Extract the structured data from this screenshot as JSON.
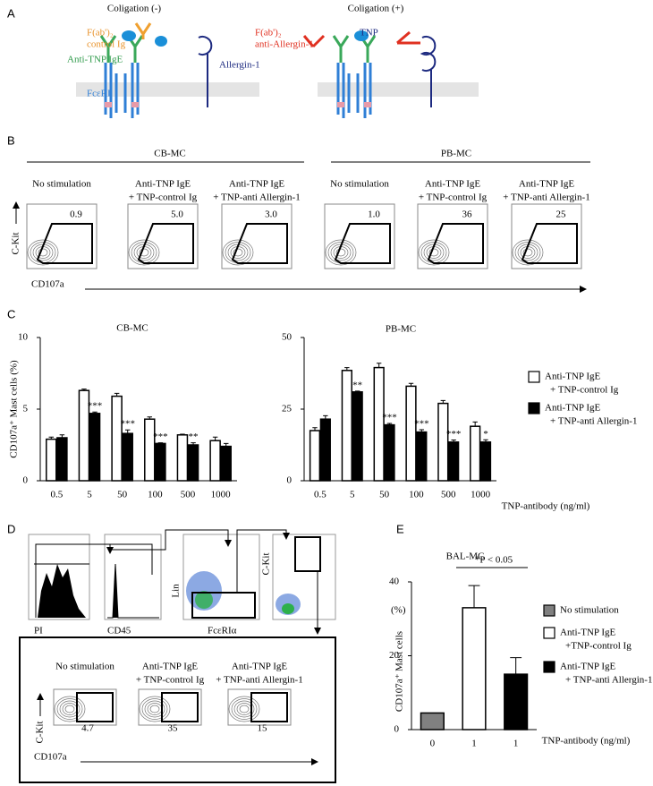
{
  "panel_labels": [
    "A",
    "B",
    "C",
    "D",
    "E"
  ],
  "panel_a": {
    "left_title": "Coligation (-)",
    "right_title": "Coligation (+)",
    "left_labels": {
      "fab": "F(ab')₂",
      "fab_line2": "control Ig",
      "ige": "Anti-TNP IgE",
      "allergin": "Allergin-1",
      "fceri": "FcεRI"
    },
    "right_labels": {
      "fab": "F(ab')₂",
      "fab_line2": "anti-Allergin-1",
      "tnp": "TNP"
    }
  },
  "panel_b": {
    "groups": [
      "CB-MC",
      "PB-MC"
    ],
    "conditions": [
      [
        "No stimulation"
      ],
      [
        "Anti-TNP IgE",
        "+ TNP-control Ig"
      ],
      [
        "Anti-TNP IgE",
        "+ TNP-anti Allergin-1"
      ],
      [
        "No stimulation"
      ],
      [
        "Anti-TNP IgE",
        "+ TNP-control Ig"
      ],
      [
        "Anti-TNP IgE",
        "+ TNP-anti Allergin-1"
      ]
    ],
    "values": [
      "0.9",
      "5.0",
      "3.0",
      "1.0",
      "36",
      "25"
    ],
    "y_label": "C-Kit",
    "x_label": "CD107a"
  },
  "panel_d": {
    "gating_labels": [
      "PI",
      "CD45",
      "Lin",
      "FcεRIα",
      "C-Kit"
    ],
    "conditions": [
      [
        "No stimulation"
      ],
      [
        "Anti-TNP IgE",
        "+ TNP-control Ig"
      ],
      [
        "Anti-TNP IgE",
        "+ TNP-anti Allergin-1"
      ]
    ],
    "values": [
      "4.7",
      "35",
      "15"
    ],
    "y_label": "C-Kit",
    "x_label": "CD107a"
  },
  "chart_data": [
    {
      "type": "bar",
      "title": "CB-MC",
      "y_label": "CD107a⁺ Mast cells (%)",
      "categories": [
        "0.5",
        "5",
        "50",
        "100",
        "500",
        "1000"
      ],
      "series": [
        {
          "name": [
            "Anti-TNP IgE",
            "+ TNP-control Ig"
          ],
          "color": "#ffffff",
          "values": [
            2.9,
            6.3,
            5.9,
            4.3,
            3.2,
            2.8
          ],
          "errors": [
            0.15,
            0.1,
            0.2,
            0.15,
            0.05,
            0.25
          ]
        },
        {
          "name": [
            "Anti-TNP IgE",
            "+ TNP-anti Allergin-1"
          ],
          "color": "#000000",
          "values": [
            3.0,
            4.7,
            3.3,
            2.6,
            2.5,
            2.4
          ],
          "errors": [
            0.2,
            0.1,
            0.25,
            0.05,
            0.15,
            0.2
          ]
        }
      ],
      "significance": [
        null,
        "***",
        "***",
        "***",
        "**",
        null
      ],
      "ylim": [
        0,
        10
      ],
      "yticks": [
        0,
        5,
        10
      ]
    },
    {
      "type": "bar",
      "title": "PB-MC",
      "x_label": "TNP-antibody (ng/ml)",
      "categories": [
        "0.5",
        "5",
        "50",
        "100",
        "500",
        "1000"
      ],
      "series": [
        {
          "color": "#ffffff",
          "values": [
            17.5,
            38.5,
            39.5,
            33,
            27,
            19
          ],
          "errors": [
            1,
            1,
            1.5,
            1,
            1,
            1.5
          ]
        },
        {
          "color": "#000000",
          "values": [
            21.5,
            31,
            19.5,
            17,
            13.5,
            13.5
          ],
          "errors": [
            1.2,
            0.3,
            0.5,
            0.8,
            0.7,
            0.8
          ]
        }
      ],
      "significance": [
        null,
        "**",
        "***",
        "***",
        "***",
        "*"
      ],
      "ylim": [
        0,
        50
      ],
      "yticks": [
        0,
        25,
        50
      ]
    },
    {
      "type": "bar",
      "title": "BAL-MC",
      "y_label": "CD107a⁺ Mast cells",
      "y_unit": "(%)",
      "x_label": "TNP-antibody (ng/ml)",
      "categories": [
        "0",
        "1",
        "1"
      ],
      "values": [
        4.5,
        33,
        15
      ],
      "errors": [
        null,
        6,
        4.5
      ],
      "colors": [
        "#808080",
        "#ffffff",
        "#000000"
      ],
      "legend": [
        [
          "No stimulation"
        ],
        [
          "Anti-TNP IgE",
          "+TNP-control Ig"
        ],
        [
          "Anti-TNP IgE",
          "+ TNP-anti Allergin-1"
        ]
      ],
      "annotation": "*P < 0.05",
      "ylim": [
        0,
        40
      ],
      "yticks": [
        0,
        20,
        40
      ]
    }
  ]
}
